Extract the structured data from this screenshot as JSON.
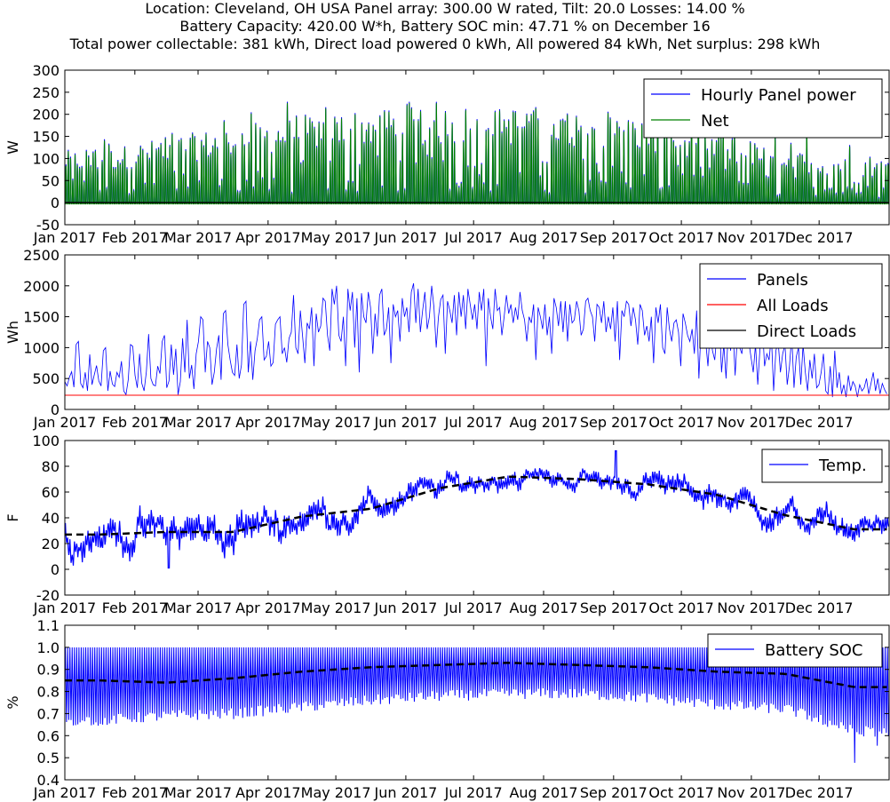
{
  "header": {
    "line1": "Location: Cleveland, OH USA Panel array: 300.00 W rated, Tilt: 20.0 Losses: 14.00 %",
    "line2": "Battery Capacity: 420.00 W*h, Battery SOC min: 47.71 % on December 16",
    "line3": "Total power collectable: 381 kWh, Direct load powered  0 kWh, All powered 84 kWh, Net surplus: 298 kWh"
  },
  "x_months": [
    "Jan 2017",
    "Feb 2017",
    "Mar 2017",
    "Apr 2017",
    "May 2017",
    "Jun 2017",
    "Jul 2017",
    "Aug 2017",
    "Sep 2017",
    "Oct 2017",
    "Nov 2017",
    "Dec 2017"
  ],
  "chart_data": [
    {
      "id": "power",
      "type": "line",
      "ylabel": "W",
      "ylim": [
        -50,
        300
      ],
      "yticks": [
        -50,
        0,
        50,
        100,
        150,
        200,
        250,
        300
      ],
      "legend": "top-right",
      "series": [
        {
          "name": "Hourly Panel power",
          "color": "#0000ff",
          "daily_peak_profile": {
            "months": [
              "Jan",
              "Feb",
              "Mar",
              "Apr",
              "May",
              "Jun",
              "Jul",
              "Aug",
              "Sep",
              "Oct",
              "Nov",
              "Dec"
            ],
            "typical_peak": [
              120,
              150,
              175,
              200,
              215,
              220,
              220,
              210,
              195,
              160,
              120,
              100
            ],
            "max_peak": [
              185,
              195,
              250,
              262,
              262,
              255,
              250,
              245,
              245,
              225,
              205,
              185
            ]
          }
        },
        {
          "name": "Net",
          "color": "#008000",
          "offset": -3
        }
      ],
      "zero_line": 0
    },
    {
      "id": "energy",
      "type": "line",
      "ylabel": "Wh",
      "ylim": [
        0,
        2500
      ],
      "yticks": [
        0,
        500,
        1000,
        1500,
        2000,
        2500
      ],
      "legend": "top-right",
      "series": [
        {
          "name": "Panels",
          "color": "#0000ff",
          "daily_values": [
            450,
            380,
            520,
            610,
            360,
            1050,
            1100,
            420,
            350,
            600,
            300,
            890,
            400,
            560,
            710,
            460,
            380,
            950,
            1000,
            300,
            620,
            410,
            370,
            600,
            520,
            780,
            300,
            240,
            480,
            1050,
            1020,
            550,
            350,
            900,
            420,
            300,
            610,
            1220,
            500,
            400,
            380,
            700,
            580,
            1100,
            1200,
            350,
            460,
            1050,
            560,
            980,
            240,
            450,
            1150,
            600,
            1450,
            500,
            720,
            330,
            900,
            1100,
            1500,
            1450,
            600,
            1100,
            1000,
            400,
            600,
            980,
            1200,
            480,
            1550,
            1600,
            1050,
            800,
            600,
            550,
            1050,
            500,
            720,
            1700,
            1750,
            600,
            1100,
            480,
            950,
            1150,
            1450,
            1500,
            800,
            860,
            1100,
            700,
            760,
            1380,
            1450,
            1500,
            900,
            1000,
            760,
            1150,
            1250,
            1850,
            1000,
            900,
            1600,
            1180,
            750,
            1400,
            1300,
            1650,
            700,
            1550,
            1250,
            1350,
            1800,
            1750,
            1200,
            950,
            1950,
            1700,
            2000,
            1200,
            1100,
            1500,
            700,
            1950,
            1600,
            1900,
            1000,
            1800,
            600,
            1880,
            1500,
            1400,
            1900,
            1650,
            900,
            1550,
            1180,
            1850,
            1950,
            1200,
            1300,
            1650,
            750,
            1700,
            1500,
            1600,
            1100,
            1800,
            1500,
            1650,
            1250,
            1900,
            2040,
            1400,
            1950,
            1250,
            1600,
            1900,
            1300,
            1500,
            2000,
            1650,
            1000,
            1500,
            1780,
            1850,
            900,
            1750,
            1600,
            1400,
            1850,
            1200,
            1900,
            1500,
            1850,
            1300,
            1950,
            1700,
            1450,
            1700,
            1300,
            1900,
            1600,
            1950,
            700,
            1800,
            1500,
            1300,
            1950,
            1600,
            1650,
            1200,
            1500,
            1850,
            1550,
            1700,
            1400,
            1650,
            1450,
            1900,
            1600,
            1450,
            1100,
            1500,
            1400,
            1700,
            800,
            1650,
            1500,
            1300,
            1700,
            1200,
            1500,
            900,
            1800,
            1650,
            1350,
            1750,
            1250,
            1750,
            1100,
            1700,
            1400,
            1450,
            1750,
            1600,
            1200,
            1300,
            1750,
            1800,
            1600,
            1500,
            1100,
            1700,
            1650,
            1400,
            1750,
            1250,
            1500,
            1300,
            1650,
            1100,
            1750,
            800,
            1600,
            1500,
            1750,
            1700,
            1350,
            1650,
            1450,
            1050,
            1700,
            1600,
            1200,
            1350,
            1100,
            1500,
            750,
            1650,
            1400,
            1700,
            1000,
            900,
            1650,
            1300,
            1100,
            1400,
            1450,
            1250,
            700,
            1550,
            1400,
            1200,
            1100,
            1300,
            900,
            1600,
            500,
            1350,
            1500,
            1100,
            700,
            1300,
            950,
            800,
            1250,
            1500,
            600,
            1050,
            500,
            1300,
            950,
            1350,
            550,
            1200,
            1000,
            900,
            1450,
            1400,
            1100,
            850,
            600,
            1050,
            400,
            1000,
            1400,
            700,
            900,
            800,
            1200,
            300,
            950,
            1100,
            600,
            900,
            1050,
            400,
            700,
            1200,
            350,
            850,
            1000,
            400,
            1050,
            600,
            300,
            800,
            500,
            900,
            350,
            400,
            600,
            900,
            300,
            250,
            700,
            200,
            950,
            350,
            600,
            250,
            400,
            200,
            550,
            300,
            450,
            380,
            200,
            400,
            300,
            350,
            500,
            250,
            420,
            600,
            300,
            500,
            250,
            420,
            320,
            250
          ]
        },
        {
          "name": "All Loads",
          "color": "#ff0000",
          "constant": 230
        },
        {
          "name": "Direct Loads",
          "color": "#000000",
          "constant": 0
        }
      ]
    },
    {
      "id": "temperature",
      "type": "line",
      "ylabel": "F",
      "ylim": [
        -20,
        100
      ],
      "yticks": [
        -20,
        0,
        20,
        40,
        60,
        80,
        100
      ],
      "legend": "top-right",
      "series": [
        {
          "name": "Temp.",
          "color": "#0000ff",
          "monthly_mean": [
            27,
            29,
            29,
            41,
            47,
            63,
            72,
            70,
            66,
            58,
            42,
            31
          ],
          "monthly_swing": [
            16,
            18,
            18,
            16,
            14,
            11,
            9,
            9,
            11,
            13,
            13,
            12
          ],
          "min_point": {
            "day": 46,
            "value": 1
          },
          "max_point": {
            "day": 244,
            "value": 92
          }
        },
        {
          "name": "",
          "color": "#000000",
          "style": "dashed",
          "monthly_mean": [
            27,
            29,
            29,
            41,
            47,
            63,
            72,
            70,
            66,
            58,
            42,
            31
          ]
        }
      ]
    },
    {
      "id": "battery",
      "type": "line",
      "ylabel": "%",
      "ylim": [
        0.4,
        1.1
      ],
      "yticks": [
        0.4,
        0.5,
        0.6,
        0.7,
        0.8,
        0.9,
        1.0,
        1.1
      ],
      "legend": "top-right",
      "series": [
        {
          "name": "Battery SOC",
          "color": "#0000ff",
          "monthly_low": [
            0.67,
            0.69,
            0.7,
            0.73,
            0.76,
            0.78,
            0.79,
            0.79,
            0.77,
            0.74,
            0.72,
            0.62
          ],
          "high": 1.0,
          "min_point": {
            "day": 349,
            "value": 0.4771
          }
        },
        {
          "name": "",
          "color": "#000000",
          "style": "dashed",
          "monthly_mean": [
            0.85,
            0.84,
            0.86,
            0.89,
            0.91,
            0.92,
            0.93,
            0.92,
            0.91,
            0.89,
            0.88,
            0.82
          ]
        }
      ]
    }
  ]
}
